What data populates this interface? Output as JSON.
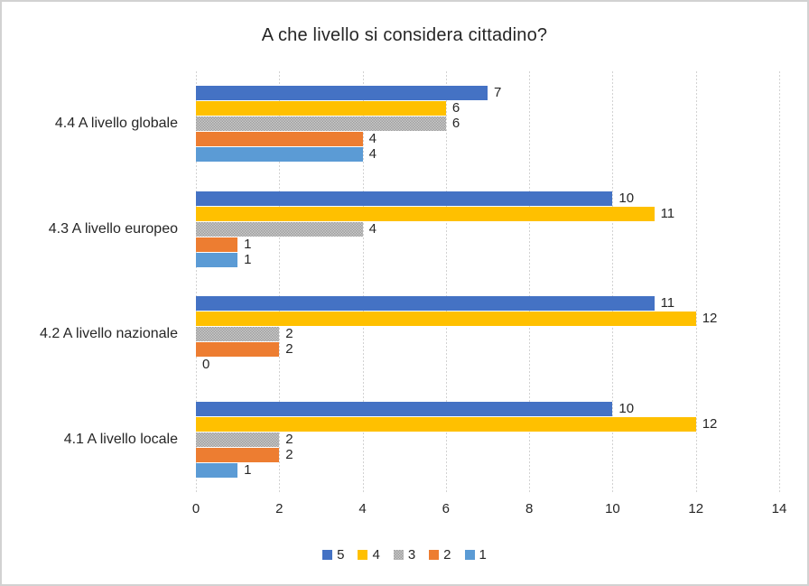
{
  "window": {
    "background": "#ffffff",
    "border_color": "#d2d2d2"
  },
  "chart_data": {
    "type": "bar",
    "orientation": "horizontal",
    "title": "A che livello si considera cittadino?",
    "categories": [
      "4.4 A livello globale",
      "4.3 A livello europeo",
      "4.2 A livello nazionale",
      "4.1 A livello locale"
    ],
    "series": [
      {
        "name": "5",
        "color": "#4472C4",
        "pattern": "solid",
        "values": [
          7,
          10,
          11,
          10
        ]
      },
      {
        "name": "4",
        "color": "#FFC000",
        "pattern": "solid",
        "values": [
          6,
          11,
          12,
          12
        ]
      },
      {
        "name": "3",
        "color": "#A6A6A6",
        "pattern": "dotted",
        "values": [
          6,
          4,
          2,
          2
        ]
      },
      {
        "name": "2",
        "color": "#ED7D31",
        "pattern": "solid",
        "values": [
          4,
          1,
          2,
          2
        ]
      },
      {
        "name": "1",
        "color": "#5B9BD5",
        "pattern": "solid",
        "values": [
          4,
          1,
          0,
          1
        ]
      }
    ],
    "x_axis": {
      "min": 0,
      "max": 14,
      "tick_interval": 2,
      "ticks": [
        0,
        2,
        4,
        6,
        8,
        10,
        12,
        14
      ]
    },
    "legend": {
      "position": "bottom",
      "entries": [
        "5",
        "4",
        "3",
        "2",
        "1"
      ]
    },
    "grid": "vertical dotted gridlines",
    "gridline_color": "#d2d2d2",
    "text_color": "#262626",
    "data_labels": true
  }
}
